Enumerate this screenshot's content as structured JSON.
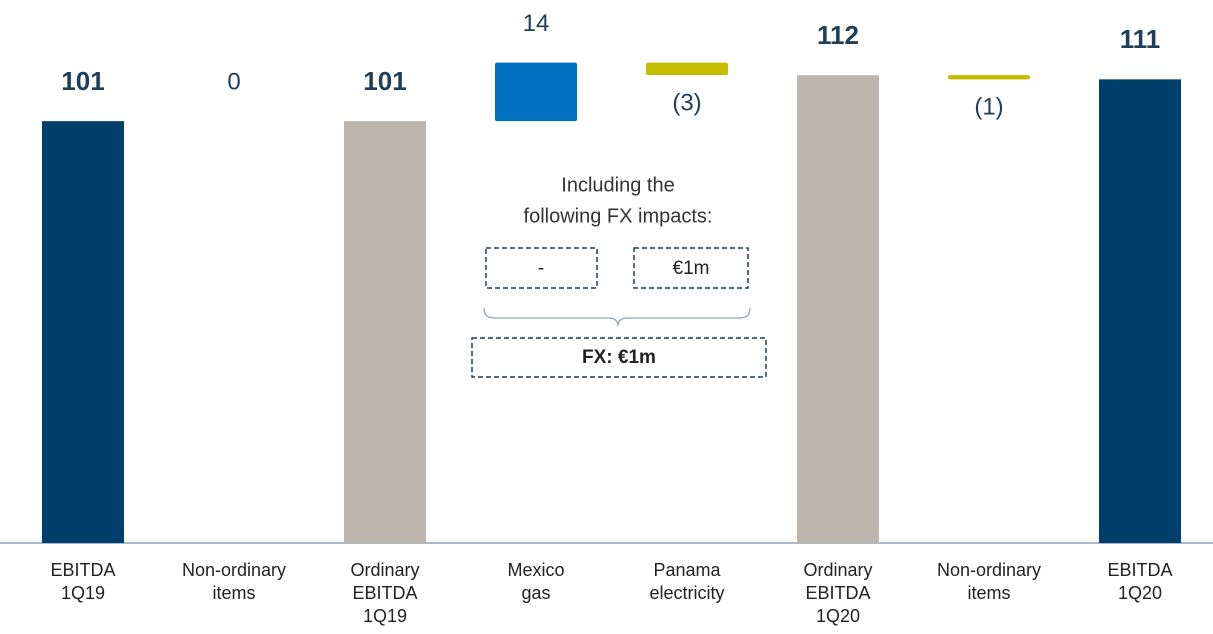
{
  "chart_data": {
    "type": "waterfall",
    "categories": [
      [
        "EBITDA",
        "1Q19"
      ],
      [
        "Non-ordinary",
        "items"
      ],
      [
        "Ordinary",
        "EBITDA",
        "1Q19"
      ],
      [
        "Mexico",
        "gas"
      ],
      [
        "Panama",
        "electricity"
      ],
      [
        "Ordinary",
        "EBITDA",
        "1Q20"
      ],
      [
        "Non-ordinary",
        "items"
      ],
      [
        "EBITDA",
        "1Q20"
      ]
    ],
    "values": [
      101,
      0,
      101,
      14,
      -3,
      112,
      -1,
      111
    ],
    "value_labels": [
      "101",
      "0",
      "101",
      "14",
      "(3)",
      "112",
      "(1)",
      "111"
    ],
    "measures": [
      "total",
      "relative",
      "total",
      "relative",
      "relative",
      "total",
      "relative",
      "total"
    ],
    "colors": [
      "#003f6b",
      "#c4bd00",
      "#bdb6ac",
      "#0070c0",
      "#c4bd00",
      "#bdb6ac",
      "#c4bd00",
      "#003f6b"
    ],
    "ylim": [
      0,
      130
    ],
    "annotations": {
      "heading": [
        "Including the",
        "following FX impacts:"
      ],
      "fx_boxes": [
        "-",
        "€1m"
      ],
      "fx_total": "FX: €1m"
    }
  }
}
